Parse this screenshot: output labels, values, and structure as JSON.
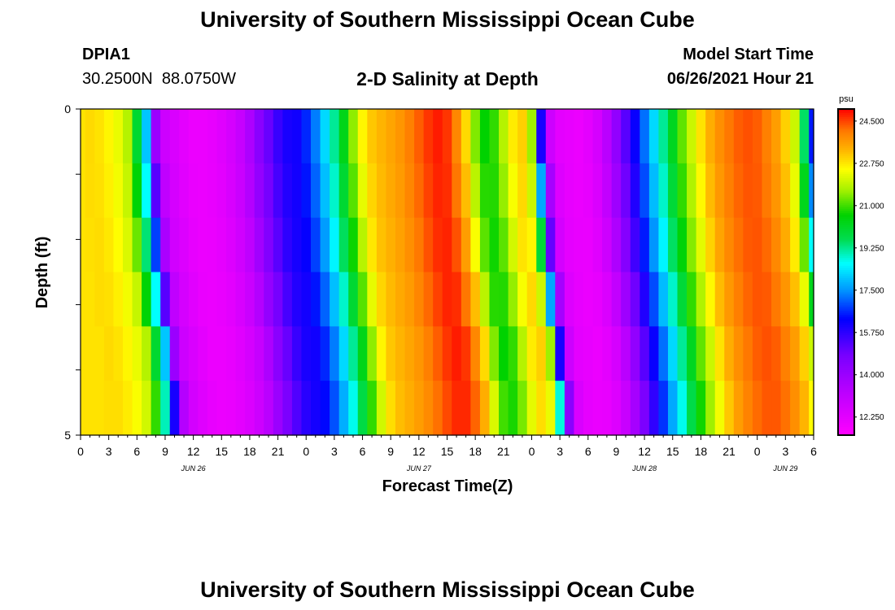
{
  "header": {
    "title": "University of Southern Mississippi Ocean Cube",
    "station_id": "DPIA1",
    "station_coords": "30.2500N  88.0750W",
    "subtitle": "2-D Salinity at Depth",
    "model_start_label": "Model Start Time",
    "model_start_value": "06/26/2021 Hour 21"
  },
  "footer": {
    "title": "University of Southern Mississippi Ocean Cube"
  },
  "chart_data": {
    "type": "heatmap",
    "title": "2-D Salinity at Depth",
    "xlabel": "Forecast Time(Z)",
    "ylabel": "Depth (ft)",
    "ylim": [
      0,
      5
    ],
    "y_tick_labels": [
      "0",
      "5"
    ],
    "x_tick_labels": [
      "0",
      "3",
      "6",
      "9",
      "12",
      "15",
      "18",
      "21",
      "0",
      "3",
      "6",
      "9",
      "12",
      "15",
      "18",
      "21",
      "0",
      "3",
      "6",
      "9",
      "12",
      "15",
      "18",
      "21",
      "0",
      "3",
      "6"
    ],
    "date_labels": [
      {
        "hour_index": 12,
        "label": "JUN 26"
      },
      {
        "hour_index": 36,
        "label": "JUN 27"
      },
      {
        "hour_index": 60,
        "label": "JUN 28"
      },
      {
        "hour_index": 75,
        "label": "JUN 29"
      }
    ],
    "time_hours": [
      0,
      1,
      2,
      3,
      4,
      5,
      6,
      7,
      8,
      9,
      10,
      11,
      12,
      13,
      14,
      15,
      16,
      17,
      18,
      19,
      20,
      21,
      22,
      23,
      24,
      25,
      26,
      27,
      28,
      29,
      30,
      31,
      32,
      33,
      34,
      35,
      36,
      37,
      38,
      39,
      40,
      41,
      42,
      43,
      44,
      45,
      46,
      47,
      48,
      49,
      50,
      51,
      52,
      53,
      54,
      55,
      56,
      57,
      58,
      59,
      60,
      61,
      62,
      63,
      64,
      65,
      66,
      67,
      68,
      69,
      70,
      71,
      72,
      73,
      74,
      75,
      76,
      77,
      78
    ],
    "depth_ft": [
      0,
      1,
      2,
      3,
      4,
      5
    ],
    "surface_salinity_psu": [
      22.8,
      22.9,
      22.8,
      22.6,
      22.3,
      21.8,
      20.0,
      18.0,
      14.0,
      12.8,
      12.5,
      12.2,
      12.0,
      12.0,
      12.1,
      12.3,
      12.6,
      13.0,
      13.6,
      14.4,
      15.0,
      15.6,
      16.0,
      16.1,
      16.6,
      17.3,
      18.2,
      19.2,
      20.3,
      21.5,
      22.6,
      23.1,
      23.3,
      23.5,
      23.7,
      24.0,
      24.3,
      24.6,
      24.8,
      24.6,
      23.9,
      22.9,
      21.4,
      20.6,
      20.9,
      21.8,
      22.7,
      23.0,
      21.6,
      16.0,
      12.8,
      12.2,
      12.1,
      12.0,
      12.2,
      12.6,
      13.3,
      14.2,
      15.2,
      16.2,
      17.2,
      18.2,
      19.2,
      20.2,
      21.2,
      22.0,
      22.8,
      23.4,
      23.8,
      24.1,
      24.3,
      24.4,
      24.3,
      24.0,
      23.6,
      23.0,
      22.0,
      19.5,
      16.5
    ],
    "depth_offset_hours": [
      0,
      0.3,
      0.7,
      1.3,
      2.0,
      2.5
    ],
    "colorbar": {
      "unit": "psu",
      "range": [
        11.5,
        25.0
      ],
      "labels": [
        "24.500",
        "22.750",
        "21.000",
        "19.250",
        "17.500",
        "15.750",
        "14.000",
        "12.250"
      ],
      "label_values": [
        24.5,
        22.75,
        21.0,
        19.25,
        17.5,
        15.75,
        14.0,
        12.25
      ]
    }
  }
}
